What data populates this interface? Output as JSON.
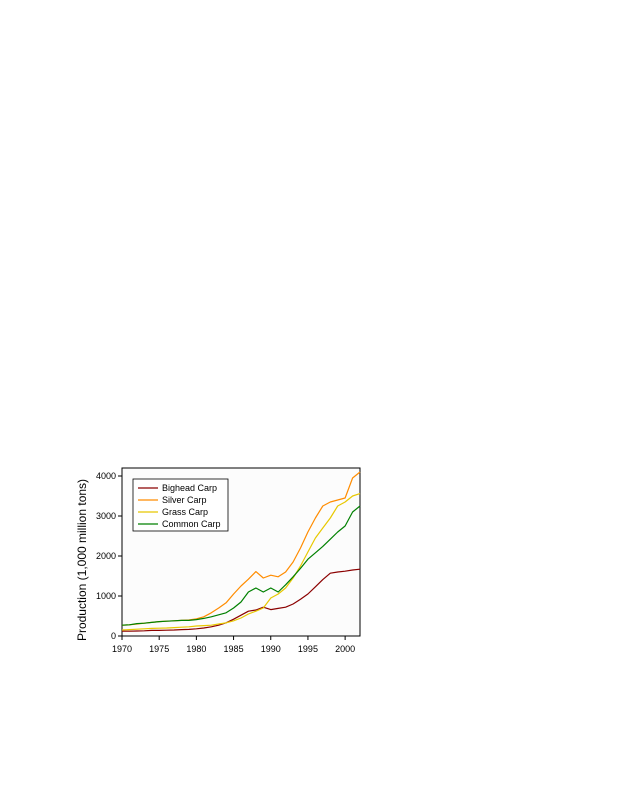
{
  "chart_data": {
    "type": "line",
    "xlabel": "",
    "ylabel": "Production (1,000 million tons)",
    "xlim": [
      1970,
      2002
    ],
    "ylim": [
      0,
      4200
    ],
    "xticks": [
      1970,
      1975,
      1980,
      1985,
      1990,
      1995,
      2000
    ],
    "yticks": [
      0,
      1000,
      2000,
      3000,
      4000
    ],
    "x_tick_labels": [
      "1970",
      "1975",
      "1980",
      "1985",
      "1990",
      "1995",
      "2000"
    ],
    "y_tick_labels": [
      "0",
      "1000",
      "2000",
      "3000",
      "4000"
    ],
    "grid": false,
    "legend_position": "top-left",
    "x": [
      1970,
      1971,
      1972,
      1973,
      1974,
      1975,
      1976,
      1977,
      1978,
      1979,
      1980,
      1981,
      1982,
      1983,
      1984,
      1985,
      1986,
      1987,
      1988,
      1989,
      1990,
      1991,
      1992,
      1993,
      1994,
      1995,
      1996,
      1997,
      1998,
      1999,
      2000,
      2001,
      2002
    ],
    "series": [
      {
        "name": "Bighead Carp",
        "color": "#8b0000",
        "values": [
          120,
          120,
          125,
          130,
          140,
          140,
          145,
          150,
          160,
          165,
          180,
          200,
          230,
          270,
          330,
          420,
          520,
          620,
          650,
          720,
          660,
          690,
          720,
          800,
          920,
          1050,
          1230,
          1410,
          1570,
          1600,
          1620,
          1650,
          1670
        ]
      },
      {
        "name": "Silver Carp",
        "color": "#ff8c00",
        "values": [
          270,
          280,
          300,
          320,
          340,
          360,
          370,
          380,
          390,
          400,
          430,
          480,
          580,
          700,
          830,
          1050,
          1250,
          1420,
          1610,
          1450,
          1520,
          1480,
          1600,
          1850,
          2200,
          2600,
          2950,
          3250,
          3350,
          3400,
          3450,
          3950,
          4100
        ]
      },
      {
        "name": "Grass Carp",
        "color": "#e8c800",
        "values": [
          150,
          160,
          170,
          180,
          190,
          195,
          200,
          210,
          220,
          230,
          250,
          260,
          270,
          300,
          330,
          380,
          450,
          550,
          620,
          700,
          950,
          1050,
          1200,
          1450,
          1750,
          2100,
          2450,
          2700,
          2950,
          3250,
          3350,
          3500,
          3560
        ]
      },
      {
        "name": "Common Carp",
        "color": "#008000",
        "values": [
          270,
          280,
          310,
          320,
          340,
          360,
          370,
          380,
          390,
          390,
          410,
          440,
          480,
          530,
          580,
          700,
          850,
          1100,
          1200,
          1100,
          1200,
          1100,
          1280,
          1480,
          1690,
          1920,
          2080,
          2240,
          2420,
          2600,
          2750,
          3100,
          3250
        ]
      }
    ]
  }
}
